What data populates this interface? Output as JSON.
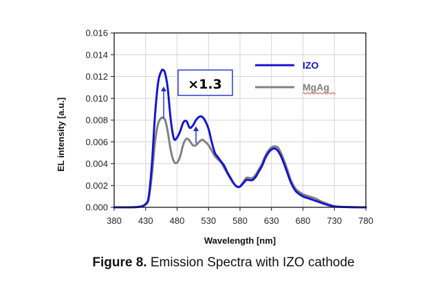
{
  "caption": {
    "label": "Figure 8.",
    "text": " Emission Spectra with IZO cathode"
  },
  "chart_data": {
    "type": "line",
    "xlabel": "Wavelength [nm]",
    "ylabel": "EL intensity [a.u.]",
    "xlim": [
      380,
      780
    ],
    "ylim": [
      0,
      0.016
    ],
    "x_ticks": [
      380,
      430,
      480,
      530,
      580,
      630,
      680,
      730,
      780
    ],
    "y_ticks": [
      "0.000",
      "0.002",
      "0.004",
      "0.006",
      "0.008",
      "0.010",
      "0.012",
      "0.014",
      "0.016"
    ],
    "grid": true,
    "legend_position": "top-right",
    "annotation": {
      "text": "×1.3",
      "color": "#1a2bd6"
    },
    "series": [
      {
        "name": "IZO",
        "color": "#1414d2",
        "x": [
          380,
          400,
          420,
          430,
          435,
          440,
          445,
          450,
          455,
          458,
          461,
          465,
          470,
          475,
          480,
          485,
          490,
          495,
          500,
          505,
          510,
          515,
          520,
          525,
          530,
          535,
          540,
          545,
          550,
          555,
          560,
          565,
          570,
          575,
          580,
          585,
          590,
          595,
          600,
          605,
          610,
          615,
          620,
          625,
          630,
          635,
          640,
          645,
          650,
          655,
          660,
          665,
          670,
          680,
          690,
          700,
          710,
          720,
          730,
          740,
          750,
          760,
          770,
          780
        ],
        "y": [
          0,
          0,
          5e-05,
          0.0003,
          0.001,
          0.004,
          0.0085,
          0.0115,
          0.0125,
          0.0126,
          0.0123,
          0.011,
          0.008,
          0.0063,
          0.0064,
          0.007,
          0.0078,
          0.0079,
          0.0073,
          0.0075,
          0.008,
          0.0083,
          0.0083,
          0.0079,
          0.0072,
          0.006,
          0.005,
          0.0046,
          0.0042,
          0.0038,
          0.0032,
          0.0027,
          0.0022,
          0.0019,
          0.0019,
          0.0022,
          0.0025,
          0.0025,
          0.0025,
          0.0028,
          0.0033,
          0.0038,
          0.0045,
          0.005,
          0.0053,
          0.0054,
          0.0052,
          0.0047,
          0.004,
          0.0032,
          0.0024,
          0.0018,
          0.0014,
          0.001,
          0.0008,
          0.0006,
          0.0004,
          0.0002,
          8e-05,
          4e-05,
          2e-05,
          1e-05,
          0,
          0
        ]
      },
      {
        "name": "MgAg",
        "color": "#808080",
        "x": [
          380,
          400,
          420,
          430,
          435,
          440,
          445,
          450,
          455,
          458,
          461,
          465,
          470,
          475,
          480,
          485,
          490,
          495,
          500,
          505,
          510,
          515,
          520,
          525,
          530,
          535,
          540,
          545,
          550,
          555,
          560,
          565,
          570,
          575,
          580,
          585,
          590,
          595,
          600,
          605,
          610,
          615,
          620,
          625,
          630,
          635,
          640,
          645,
          650,
          655,
          660,
          665,
          670,
          680,
          690,
          700,
          710,
          720,
          730,
          740,
          750,
          760,
          770,
          780
        ],
        "y": [
          0,
          0,
          4e-05,
          0.00025,
          0.0008,
          0.003,
          0.006,
          0.0077,
          0.0082,
          0.0082,
          0.008,
          0.007,
          0.0052,
          0.0042,
          0.0041,
          0.0047,
          0.0058,
          0.0063,
          0.0061,
          0.0057,
          0.0057,
          0.006,
          0.0062,
          0.006,
          0.0057,
          0.0052,
          0.0047,
          0.0044,
          0.0041,
          0.0036,
          0.0031,
          0.0026,
          0.0022,
          0.0019,
          0.0019,
          0.0023,
          0.0027,
          0.0027,
          0.0027,
          0.003,
          0.0035,
          0.004,
          0.0047,
          0.0052,
          0.0055,
          0.0056,
          0.0055,
          0.005,
          0.0043,
          0.0035,
          0.0026,
          0.002,
          0.0016,
          0.0012,
          0.001,
          0.0008,
          0.0005,
          0.0003,
          0.0001,
          5e-05,
          3e-05,
          1e-05,
          0,
          0
        ]
      }
    ]
  }
}
